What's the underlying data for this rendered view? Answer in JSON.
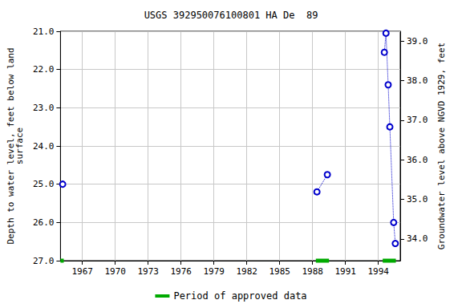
{
  "chart_data": {
    "type": "line",
    "title": "USGS 392950076100801 HA De  89",
    "ylabel": "Depth to water level, feet below land\nsurface",
    "y2label": "Groundwater level above NGVD 1929, feet",
    "x": [
      1965.2,
      null,
      1988.4,
      1989.35,
      null,
      1994.55,
      1994.7,
      1994.9,
      1995.05,
      1995.4,
      1995.55
    ],
    "series": [
      {
        "values": [
          25.0,
          null,
          25.2,
          24.75,
          null,
          21.55,
          21.05,
          22.4,
          23.5,
          26.0,
          26.55
        ],
        "color": "#0000cc",
        "marker": "circle",
        "line_style": "dotted"
      }
    ],
    "approved_label": "Period of approved data",
    "approved_color": "#00aa00",
    "approved_periods": [
      [
        1965.0,
        1965.3
      ],
      [
        1988.3,
        1989.5
      ],
      [
        1994.4,
        1995.6
      ]
    ],
    "xlim": [
      1965,
      1996
    ],
    "xticks": [
      1967,
      1970,
      1973,
      1976,
      1979,
      1982,
      1985,
      1988,
      1991,
      1994
    ],
    "ylim": [
      27,
      21
    ],
    "yticks": [
      {
        "value": 21,
        "label": "21.0"
      },
      {
        "value": 22,
        "label": "22.0"
      },
      {
        "value": 23,
        "label": "23.0"
      },
      {
        "value": 24,
        "label": "24.0"
      },
      {
        "value": 25,
        "label": "25.0"
      },
      {
        "value": 26,
        "label": "26.0"
      },
      {
        "value": 27,
        "label": "27.0"
      }
    ],
    "y2lim": [
      33.45,
      39.25
    ],
    "y2ticks": [
      {
        "value": 34,
        "label": "34.0"
      },
      {
        "value": 35,
        "label": "35.0"
      },
      {
        "value": 36,
        "label": "36.0"
      },
      {
        "value": 37,
        "label": "37.0"
      },
      {
        "value": 38,
        "label": "38.0"
      },
      {
        "value": 39,
        "label": "39.0"
      }
    ],
    "grid": true,
    "legend": "bottom"
  }
}
